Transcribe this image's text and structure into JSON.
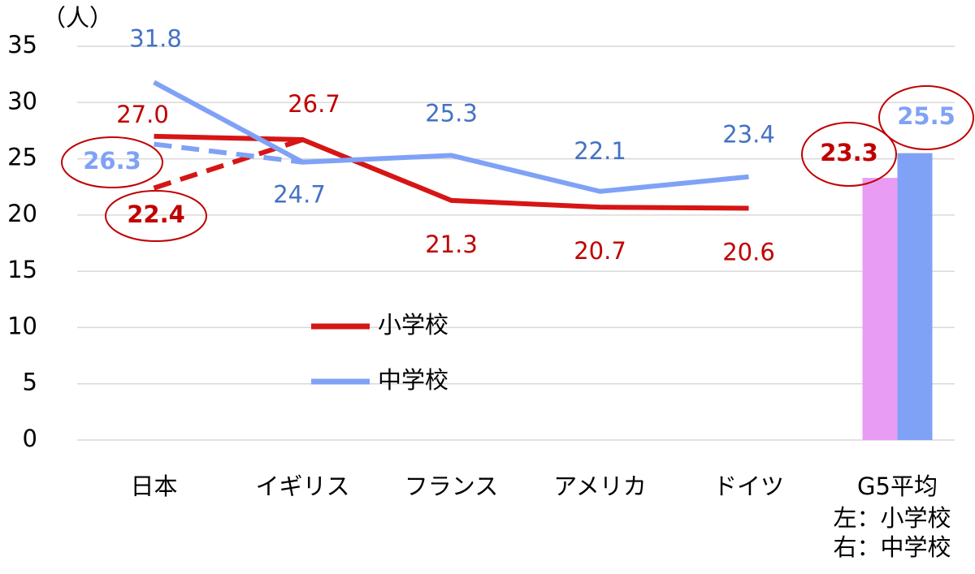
{
  "chart_data": {
    "type": "line",
    "y_unit": "（人）",
    "categories": [
      "日本",
      "イギリス",
      "フランス",
      "アメリカ",
      "ドイツ",
      "G5平均"
    ],
    "ylim": [
      0,
      35
    ],
    "yticks": [
      0,
      5,
      10,
      15,
      20,
      25,
      30,
      35
    ],
    "grid": true,
    "series": [
      {
        "name": "小学校",
        "color": "#d61515",
        "values": [
          27.0,
          26.7,
          21.3,
          20.7,
          20.6,
          null
        ],
        "value_labels": [
          "27.0",
          "26.7",
          "21.3",
          "20.7",
          "20.6",
          null
        ],
        "alt_value": 22.4,
        "alt_label": "22.4",
        "average": 23.3,
        "average_label": "23.3",
        "average_color": "#e99cf3"
      },
      {
        "name": "中学校",
        "color": "#7fa2f6",
        "values": [
          31.8,
          24.7,
          25.3,
          22.1,
          23.4,
          null
        ],
        "value_labels": [
          "31.8",
          "24.7",
          "25.3",
          "22.1",
          "23.4",
          null
        ],
        "alt_value": 26.3,
        "alt_label": "26.3",
        "average": 25.5,
        "average_label": "25.5",
        "average_color": "#7fa2f6"
      }
    ],
    "notes": [
      "左：小学校",
      "右：中学校"
    ]
  }
}
